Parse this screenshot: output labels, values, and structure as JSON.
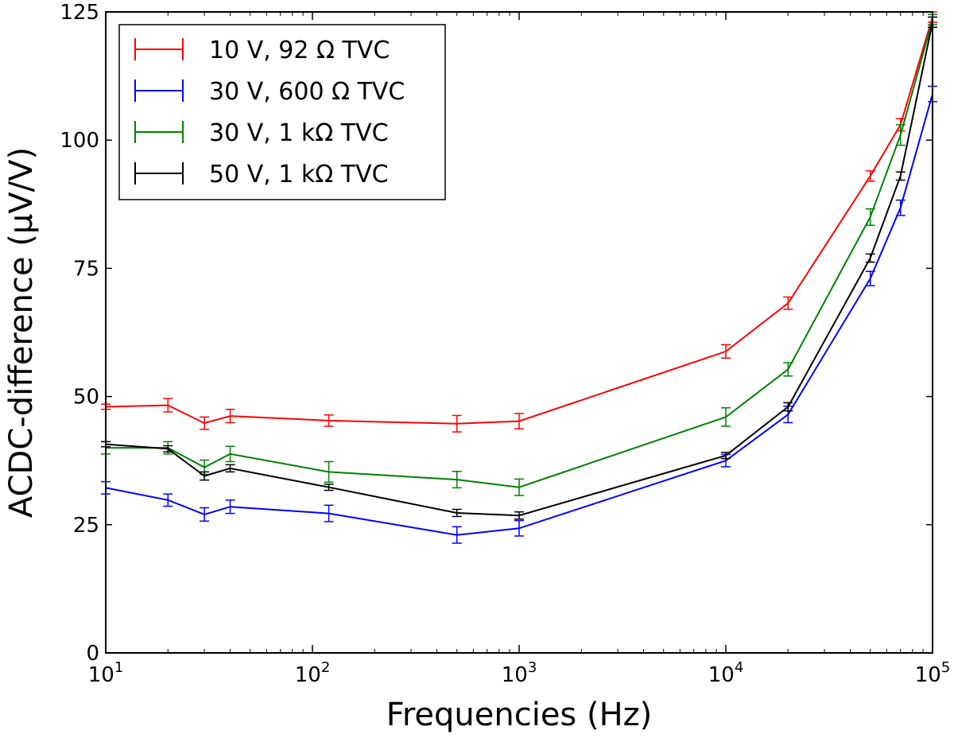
{
  "chart_data": {
    "type": "line",
    "xscale": "log",
    "xlabel": "Frequencies (Hz)",
    "ylabel": "ACDC-difference (μV/V)",
    "xlim": [
      10,
      100000
    ],
    "ylim": [
      0,
      125
    ],
    "yticks": [
      0,
      25,
      50,
      75,
      100,
      125
    ],
    "xticks": [
      {
        "value": 10,
        "base": "10",
        "exp": "1"
      },
      {
        "value": 100,
        "base": "10",
        "exp": "2"
      },
      {
        "value": 1000,
        "base": "10",
        "exp": "3"
      },
      {
        "value": 10000,
        "base": "10",
        "exp": "4"
      },
      {
        "value": 100000,
        "base": "10",
        "exp": "5"
      }
    ],
    "grid": false,
    "legend_position": "top-left",
    "series": [
      {
        "name": "10 V, 92 Ω TVC",
        "color": "#ff0000",
        "x": [
          10,
          20,
          30,
          40,
          120,
          500,
          1000,
          10000,
          20000,
          50000,
          70000,
          100000
        ],
        "y": [
          48.0,
          48.3,
          44.8,
          46.2,
          45.3,
          44.7,
          45.2,
          58.8,
          68.2,
          93.0,
          103.0,
          124.0
        ],
        "err": [
          0.5,
          1.3,
          1.2,
          1.3,
          1.1,
          1.6,
          1.5,
          1.3,
          1.2,
          1.0,
          1.2,
          1.0
        ]
      },
      {
        "name": "30 V, 600 Ω TVC",
        "color": "#0000ff",
        "x": [
          10,
          20,
          30,
          40,
          120,
          500,
          1000,
          10000,
          20000,
          50000,
          70000,
          100000
        ],
        "y": [
          32.2,
          29.8,
          27.0,
          28.5,
          27.2,
          23.0,
          24.3,
          37.5,
          46.5,
          73.0,
          86.8,
          109.0
        ],
        "err": [
          1.2,
          1.2,
          1.3,
          1.3,
          1.6,
          1.6,
          1.5,
          1.2,
          1.6,
          1.4,
          1.5,
          1.5
        ]
      },
      {
        "name": "30 V, 1 kΩ TVC",
        "color": "#008000",
        "x": [
          10,
          20,
          30,
          40,
          120,
          500,
          1000,
          10000,
          20000,
          50000,
          70000,
          100000
        ],
        "y": [
          40.0,
          40.0,
          36.2,
          38.8,
          35.3,
          33.8,
          32.3,
          46.0,
          55.3,
          85.0,
          101.0,
          123.5
        ],
        "err": [
          1.2,
          1.2,
          1.4,
          1.5,
          2.0,
          1.6,
          1.6,
          1.8,
          1.3,
          1.6,
          2.0,
          1.0
        ]
      },
      {
        "name": "50 V, 1 kΩ TVC",
        "color": "#000000",
        "x": [
          10,
          20,
          30,
          40,
          120,
          500,
          1000,
          10000,
          20000,
          50000,
          70000,
          100000
        ],
        "y": [
          40.7,
          39.8,
          34.5,
          36.0,
          32.3,
          27.3,
          26.8,
          38.5,
          48.0,
          77.0,
          93.0,
          123.0
        ],
        "err": [
          0.5,
          0.6,
          0.8,
          0.7,
          0.6,
          0.7,
          0.7,
          0.6,
          0.8,
          0.8,
          0.8,
          1.0
        ]
      }
    ]
  }
}
